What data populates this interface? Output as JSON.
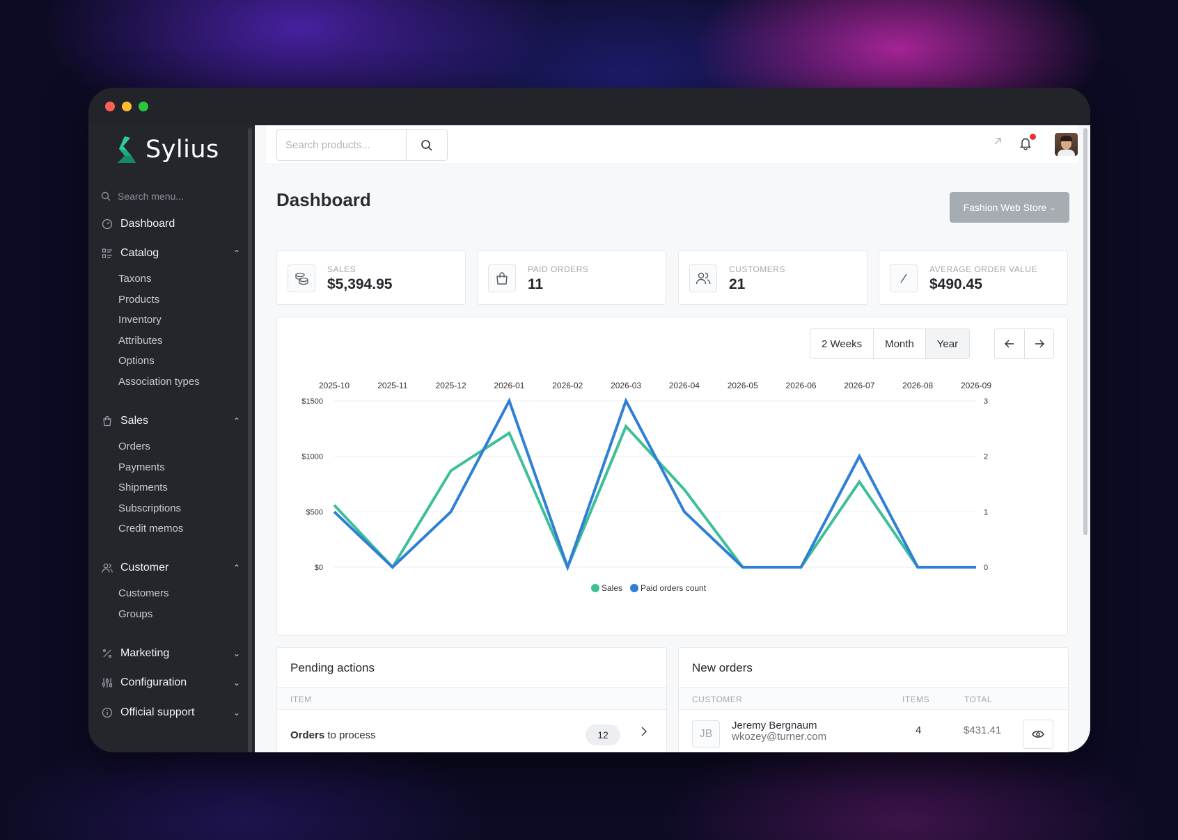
{
  "sidebar": {
    "brand": "Sylius",
    "search_placeholder": "Search menu...",
    "dashboard": "Dashboard",
    "catalog": {
      "label": "Catalog",
      "items": [
        "Taxons",
        "Products",
        "Inventory",
        "Attributes",
        "Options",
        "Association types"
      ]
    },
    "sales": {
      "label": "Sales",
      "items": [
        "Orders",
        "Payments",
        "Shipments",
        "Subscriptions",
        "Credit memos"
      ]
    },
    "customer": {
      "label": "Customer",
      "items": [
        "Customers",
        "Groups"
      ]
    },
    "marketing": "Marketing",
    "configuration": "Configuration",
    "official_support": "Official support"
  },
  "topbar": {
    "search_placeholder": "Search products..."
  },
  "page": {
    "title": "Dashboard",
    "store_button": "Fashion Web Store"
  },
  "stats": [
    {
      "label": "SALES",
      "value": "$5,394.95",
      "icon": "coins-icon"
    },
    {
      "label": "PAID ORDERS",
      "value": "11",
      "icon": "shopping-bag-icon"
    },
    {
      "label": "CUSTOMERS",
      "value": "21",
      "icon": "users-icon"
    },
    {
      "label": "AVERAGE ORDER VALUE",
      "value": "$490.45",
      "icon": "slash-icon"
    }
  ],
  "chart_controls": {
    "ranges": [
      "2 Weeks",
      "Month",
      "Year"
    ],
    "active_range": "Year"
  },
  "chart_data": {
    "type": "line",
    "x": [
      "2025-10",
      "2025-11",
      "2025-12",
      "2026-01",
      "2026-02",
      "2026-03",
      "2026-04",
      "2026-05",
      "2026-06",
      "2026-07",
      "2026-08",
      "2026-09"
    ],
    "y_left_ticks": [
      "$0",
      "$500",
      "$1000",
      "$1500"
    ],
    "y_right_ticks": [
      "0",
      "1",
      "2",
      "3"
    ],
    "y_left_range": [
      0,
      1500
    ],
    "y_right_range": [
      0,
      3
    ],
    "grid": true,
    "legend_position": "bottom",
    "series": [
      {
        "name": "Sales",
        "axis": "left",
        "color": "#3ebf9a",
        "values": [
          560,
          0,
          870,
          1210,
          0,
          1270,
          700,
          0,
          0,
          770,
          0,
          0
        ]
      },
      {
        "name": "Paid orders count",
        "axis": "right",
        "color": "#2f7fd6",
        "values": [
          1,
          0,
          1,
          3,
          0,
          3,
          1,
          0,
          0,
          2,
          0,
          0
        ]
      }
    ]
  },
  "pending_actions": {
    "title": "Pending actions",
    "column_item": "ITEM",
    "row_bold": "Orders",
    "row_rest": " to process",
    "row_count": "12"
  },
  "new_orders": {
    "title": "New orders",
    "columns": {
      "customer": "CUSTOMER",
      "items": "ITEMS",
      "total": "TOTAL"
    },
    "rows": [
      {
        "initials": "JB",
        "name": "Jeremy Bergnaum",
        "email": "wkozey@turner.com",
        "items": "4",
        "total": "$431.41"
      }
    ]
  }
}
